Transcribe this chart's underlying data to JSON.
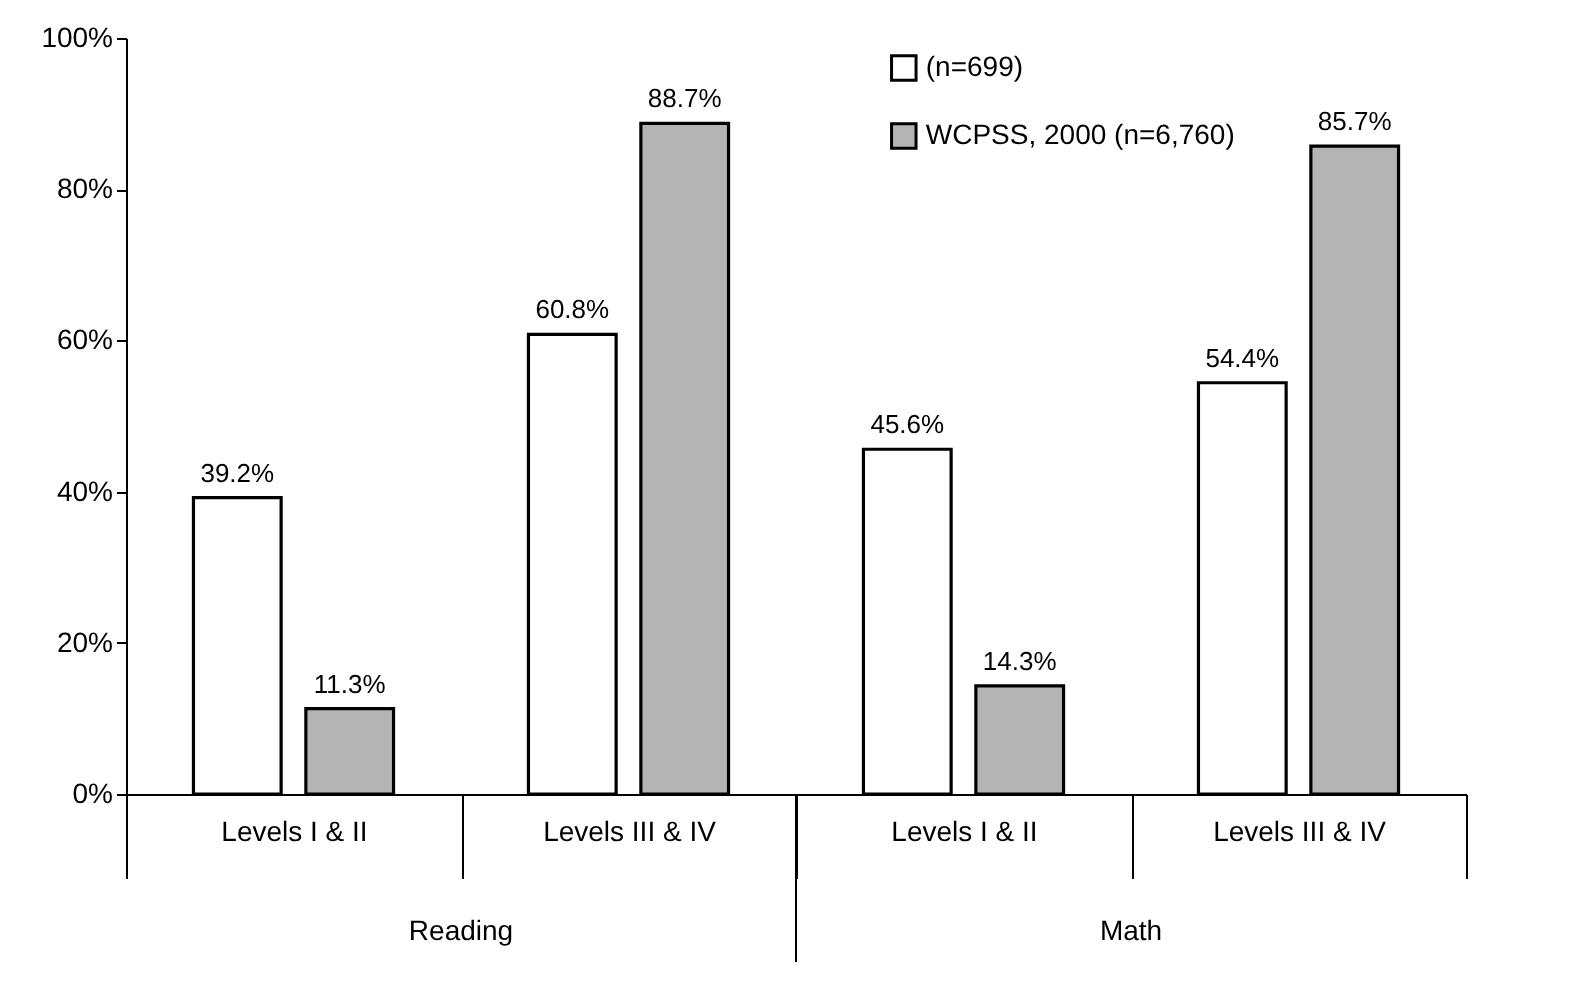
{
  "chart_data": {
    "type": "bar",
    "categories": [
      "Levels I & II",
      "Levels III & IV",
      "Levels I & II",
      "Levels III & IV"
    ],
    "annotations": [
      "Reading",
      "Math"
    ],
    "series": [
      {
        "name": "(n=699)",
        "color": "#ffffff",
        "values": [
          39.2,
          60.8,
          45.6,
          54.4
        ],
        "value_labels": [
          "39.2%",
          "60.8%",
          "45.6%",
          "54.4%"
        ]
      },
      {
        "name": "WCPSS, 2000 (n=6,760)",
        "color": "#b4b4b4",
        "values": [
          11.3,
          88.7,
          14.3,
          85.7
        ],
        "value_labels": [
          "11.3%",
          "88.7%",
          "14.3%",
          "85.7%"
        ]
      }
    ],
    "ylim": [
      0,
      100
    ],
    "yticks": [
      {
        "value": 0,
        "label": "0%"
      },
      {
        "value": 20,
        "label": "20%"
      },
      {
        "value": 40,
        "label": "40%"
      },
      {
        "value": 60,
        "label": "60%"
      },
      {
        "value": 80,
        "label": "80%"
      },
      {
        "value": 100,
        "label": "100%"
      }
    ],
    "grid": false,
    "legend": "top right"
  }
}
